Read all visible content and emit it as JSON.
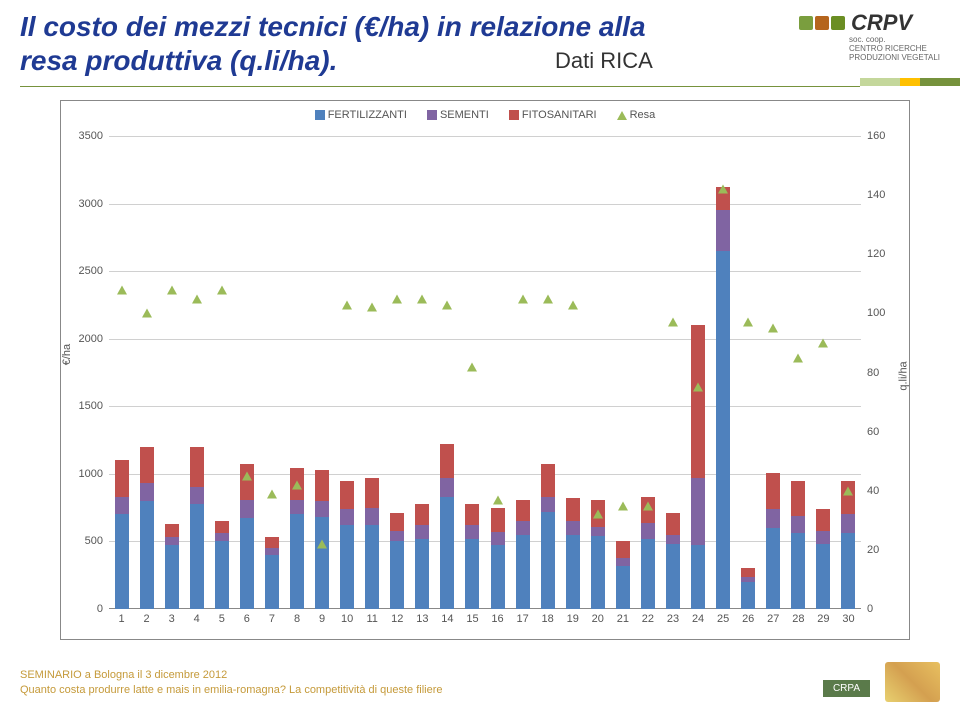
{
  "title": "Il costo dei mezzi tecnici (€/ha) in relazione alla resa produttiva (q.li/ha).",
  "subtitle": "Dati RICA",
  "logo": {
    "name": "CRPV",
    "sub1": "soc. coop.",
    "sub2": "CENTRO RICERCHE",
    "sub3": "PRODUZIONI VEGETALI"
  },
  "footer": {
    "line1": "SEMINARIO a Bologna il 3 dicembre 2012",
    "line2": "Quanto costa produrre latte e mais in emilia-romagna? La competitività di queste filiere",
    "logo": "CRPA"
  },
  "chart": {
    "type": "stacked-bar-with-markers",
    "legend": [
      {
        "label": "FERTILIZZANTI",
        "color": "#4f81bd",
        "shape": "square"
      },
      {
        "label": "SEMENTI",
        "color": "#8064a2",
        "shape": "square"
      },
      {
        "label": "FITOSANITARI",
        "color": "#c0504d",
        "shape": "square"
      },
      {
        "label": "Resa",
        "color": "#9bbb59",
        "shape": "triangle"
      }
    ],
    "y_left": {
      "label": "€/ha",
      "min": 0,
      "max": 3500,
      "step": 500
    },
    "y_right": {
      "label": "q.li/ha",
      "min": 0,
      "max": 160,
      "step": 20
    },
    "categories": [
      "1",
      "2",
      "3",
      "4",
      "5",
      "6",
      "7",
      "8",
      "9",
      "10",
      "11",
      "12",
      "13",
      "14",
      "15",
      "16",
      "17",
      "18",
      "19",
      "20",
      "21",
      "22",
      "23",
      "24",
      "25",
      "26",
      "27",
      "28",
      "29",
      "30"
    ],
    "colors": {
      "fertilizzanti": "#4f81bd",
      "sementi": "#8064a2",
      "fitosanitari": "#c0504d",
      "resa": "#9bbb59"
    },
    "grid_color": "#d0d0d0",
    "background_color": "#ffffff",
    "bars": [
      {
        "fert": 700,
        "sem": 130,
        "fito": 270
      },
      {
        "fert": 800,
        "sem": 130,
        "fito": 270
      },
      {
        "fert": 470,
        "sem": 60,
        "fito": 100
      },
      {
        "fert": 780,
        "sem": 120,
        "fito": 300
      },
      {
        "fert": 500,
        "sem": 60,
        "fito": 90
      },
      {
        "fert": 670,
        "sem": 140,
        "fito": 260
      },
      {
        "fert": 400,
        "sem": 50,
        "fito": 80
      },
      {
        "fert": 700,
        "sem": 110,
        "fito": 230
      },
      {
        "fert": 680,
        "sem": 120,
        "fito": 230
      },
      {
        "fert": 620,
        "sem": 120,
        "fito": 210
      },
      {
        "fert": 620,
        "sem": 130,
        "fito": 220
      },
      {
        "fert": 500,
        "sem": 80,
        "fito": 130
      },
      {
        "fert": 520,
        "sem": 100,
        "fito": 160
      },
      {
        "fert": 830,
        "sem": 140,
        "fito": 250
      },
      {
        "fert": 520,
        "sem": 100,
        "fito": 160
      },
      {
        "fert": 470,
        "sem": 100,
        "fito": 180
      },
      {
        "fert": 550,
        "sem": 100,
        "fito": 160
      },
      {
        "fert": 720,
        "sem": 110,
        "fito": 240
      },
      {
        "fert": 550,
        "sem": 100,
        "fito": 170
      },
      {
        "fert": 540,
        "sem": 70,
        "fito": 200
      },
      {
        "fert": 320,
        "sem": 60,
        "fito": 120
      },
      {
        "fert": 520,
        "sem": 120,
        "fito": 190
      },
      {
        "fert": 480,
        "sem": 70,
        "fito": 160
      },
      {
        "fert": 470,
        "sem": 500,
        "fito": 1130
      },
      {
        "fert": 2650,
        "sem": 300,
        "fito": 170
      },
      {
        "fert": 200,
        "sem": 40,
        "fito": 60
      },
      {
        "fert": 600,
        "sem": 140,
        "fito": 270
      },
      {
        "fert": 560,
        "sem": 130,
        "fito": 260
      },
      {
        "fert": 480,
        "sem": 100,
        "fito": 160
      },
      {
        "fert": 560,
        "sem": 140,
        "fito": 250
      }
    ],
    "resa": [
      108,
      100,
      108,
      105,
      108,
      45,
      39,
      42,
      22,
      103,
      102,
      105,
      105,
      103,
      82,
      37,
      105,
      105,
      103,
      32,
      35,
      35,
      97,
      75,
      142,
      97,
      95,
      85,
      90,
      40
    ]
  }
}
